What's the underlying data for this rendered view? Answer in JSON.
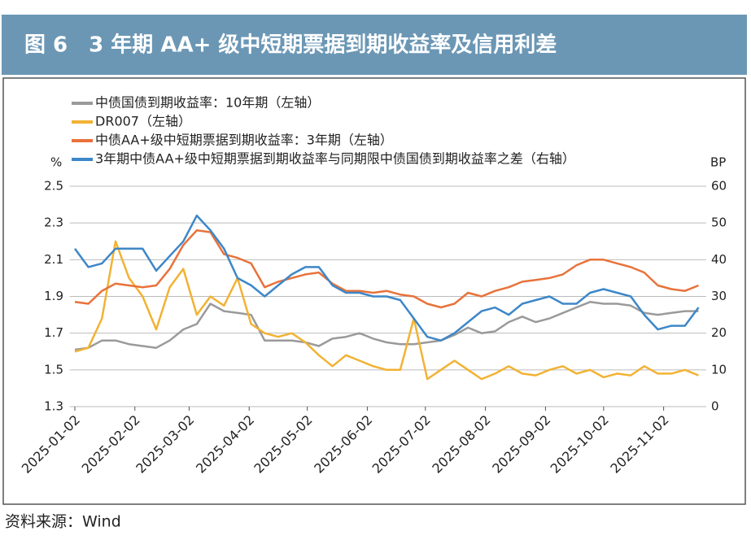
{
  "chart_data": {
    "type": "line",
    "title": "图 6　3 年期 AA+ 级中短期票据到期收益率及信用利差",
    "ylabel": "%",
    "y2label": "BP",
    "source": "资料来源：Wind",
    "x": [
      "2025-01-02",
      "2025-01-09",
      "2025-01-16",
      "2025-01-23",
      "2025-01-30",
      "2025-02-06",
      "2025-02-13",
      "2025-02-20",
      "2025-02-27",
      "2025-03-06",
      "2025-03-13",
      "2025-03-20",
      "2025-03-27",
      "2025-04-03",
      "2025-04-10",
      "2025-04-17",
      "2025-04-24",
      "2025-05-01",
      "2025-05-08",
      "2025-05-15",
      "2025-05-22",
      "2025-05-29",
      "2025-06-05",
      "2025-06-12",
      "2025-06-19",
      "2025-06-26",
      "2025-07-03",
      "2025-07-10",
      "2025-07-17",
      "2025-07-24",
      "2025-07-31",
      "2025-08-07",
      "2025-08-14",
      "2025-08-21",
      "2025-08-28",
      "2025-09-04",
      "2025-09-11",
      "2025-09-18",
      "2025-09-25",
      "2025-10-02",
      "2025-10-09",
      "2025-10-16",
      "2025-10-23",
      "2025-10-30",
      "2025-11-06",
      "2025-11-13",
      "2025-11-20"
    ],
    "xlim": [
      "2025-01-01",
      "2025-11-24"
    ],
    "xticks": [
      "2025-01-02",
      "2025-02-02",
      "2025-03-02",
      "2025-04-02",
      "2025-05-02",
      "2025-06-02",
      "2025-07-02",
      "2025-08-02",
      "2025-09-02",
      "2025-10-02",
      "2025-11-02"
    ],
    "ylim": [
      1.3,
      2.5
    ],
    "yticks": [
      1.3,
      1.5,
      1.7,
      1.9,
      2.1,
      2.3,
      2.5
    ],
    "y2lim": [
      0,
      60
    ],
    "y2ticks": [
      0,
      10,
      20,
      30,
      40,
      50,
      60
    ],
    "grid": true,
    "series": [
      {
        "name": "中债国债到期收益率：10年期（左轴）",
        "color": "#9a9a9a",
        "values": [
          1.61,
          1.62,
          1.66,
          1.66,
          1.64,
          1.63,
          1.62,
          1.66,
          1.72,
          1.75,
          1.86,
          1.82,
          1.81,
          1.8,
          1.66,
          1.66,
          1.66,
          1.65,
          1.63,
          1.67,
          1.68,
          1.7,
          1.67,
          1.65,
          1.64,
          1.64,
          1.65,
          1.66,
          1.69,
          1.73,
          1.7,
          1.71,
          1.76,
          1.79,
          1.76,
          1.78,
          1.81,
          1.84,
          1.87,
          1.86,
          1.86,
          1.85,
          1.81,
          1.8,
          1.81,
          1.82,
          1.82
        ]
      },
      {
        "name": "DR007（左轴）",
        "color": "#f2b233",
        "values": [
          1.6,
          1.62,
          1.78,
          2.2,
          2.0,
          1.9,
          1.72,
          1.95,
          2.05,
          1.8,
          1.9,
          1.85,
          2.0,
          1.75,
          1.7,
          1.68,
          1.7,
          1.65,
          1.58,
          1.52,
          1.58,
          1.55,
          1.52,
          1.5,
          1.5,
          1.78,
          1.45,
          1.5,
          1.55,
          1.5,
          1.45,
          1.48,
          1.52,
          1.48,
          1.47,
          1.5,
          1.52,
          1.48,
          1.5,
          1.46,
          1.48,
          1.47,
          1.52,
          1.48,
          1.48,
          1.5,
          1.47
        ]
      },
      {
        "name": "中债AA+级中短期票据到期收益率：3年期（左轴）",
        "color": "#e8723a",
        "values": [
          1.87,
          1.86,
          1.93,
          1.97,
          1.96,
          1.95,
          1.96,
          2.05,
          2.18,
          2.26,
          2.25,
          2.13,
          2.11,
          2.08,
          1.95,
          1.98,
          2.0,
          2.02,
          2.03,
          1.97,
          1.93,
          1.93,
          1.92,
          1.93,
          1.91,
          1.9,
          1.86,
          1.84,
          1.86,
          1.92,
          1.9,
          1.93,
          1.95,
          1.98,
          1.99,
          2.0,
          2.02,
          2.07,
          2.1,
          2.1,
          2.08,
          2.06,
          2.03,
          1.96,
          1.94,
          1.93,
          1.96
        ]
      },
      {
        "name": "3年期中债AA+级中短期票据到期收益率与同期限中债国债到期收益率之差（右轴）",
        "color": "#3d87c8",
        "axis": "y2",
        "values": [
          43,
          38,
          39,
          43,
          43,
          43,
          37,
          41,
          45,
          52,
          48,
          43,
          35,
          33,
          30,
          33,
          36,
          38,
          38,
          33,
          31,
          31,
          30,
          30,
          29,
          24,
          19,
          18,
          20,
          23,
          26,
          27,
          25,
          28,
          29,
          30,
          28,
          28,
          31,
          32,
          31,
          30,
          25,
          21,
          22,
          22,
          27
        ]
      }
    ]
  }
}
